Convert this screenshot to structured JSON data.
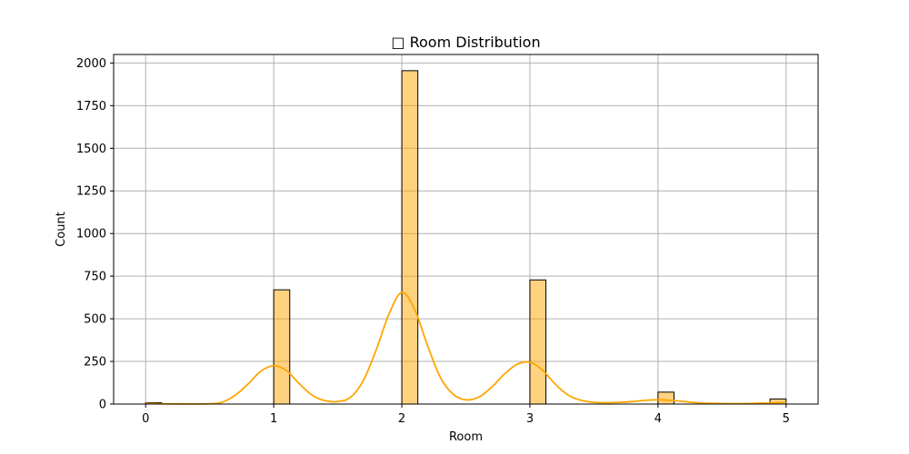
{
  "chart_data": {
    "type": "bar",
    "subtype": "histogram",
    "title": "□ Room Distribution",
    "xlabel": "Room",
    "ylabel": "Count",
    "xlim": [
      -0.25,
      5.25
    ],
    "ylim": [
      0,
      2050
    ],
    "xticks": [
      0,
      1,
      2,
      3,
      4,
      5
    ],
    "yticks": [
      0,
      250,
      500,
      750,
      1000,
      1250,
      1500,
      1750,
      2000
    ],
    "grid": true,
    "bin_width": 0.125,
    "bins": [
      {
        "start": 0.0,
        "count": 8
      },
      {
        "start": 1.0,
        "count": 670
      },
      {
        "start": 2.0,
        "count": 1955
      },
      {
        "start": 3.0,
        "count": 728
      },
      {
        "start": 4.0,
        "count": 70
      },
      {
        "start": 4.875,
        "count": 30
      }
    ],
    "kde": {
      "color": "#FFA500",
      "x": [
        0.0,
        0.25,
        0.5,
        0.6,
        0.7,
        0.8,
        0.9,
        1.0,
        1.1,
        1.2,
        1.3,
        1.4,
        1.5,
        1.6,
        1.7,
        1.8,
        1.9,
        2.0,
        2.1,
        2.2,
        2.3,
        2.4,
        2.5,
        2.6,
        2.7,
        2.8,
        2.9,
        3.0,
        3.1,
        3.2,
        3.3,
        3.4,
        3.5,
        3.6,
        3.7,
        3.8,
        3.9,
        4.0,
        4.1,
        4.2,
        4.3,
        4.5,
        4.7,
        4.85,
        5.0
      ],
      "y": [
        3,
        1,
        2,
        12,
        52,
        118,
        193,
        225,
        196,
        119,
        52,
        20,
        15,
        40,
        138,
        318,
        528,
        655,
        555,
        345,
        158,
        58,
        25,
        40,
        98,
        175,
        233,
        245,
        198,
        115,
        52,
        22,
        10,
        8,
        10,
        15,
        22,
        25,
        22,
        15,
        8,
        3,
        3,
        6,
        10
      ]
    },
    "colors": {
      "bar_fill": "#FFA500",
      "bar_fill_opacity": 0.5,
      "bar_edge": "#000000",
      "grid": "#b0b0b0"
    }
  }
}
